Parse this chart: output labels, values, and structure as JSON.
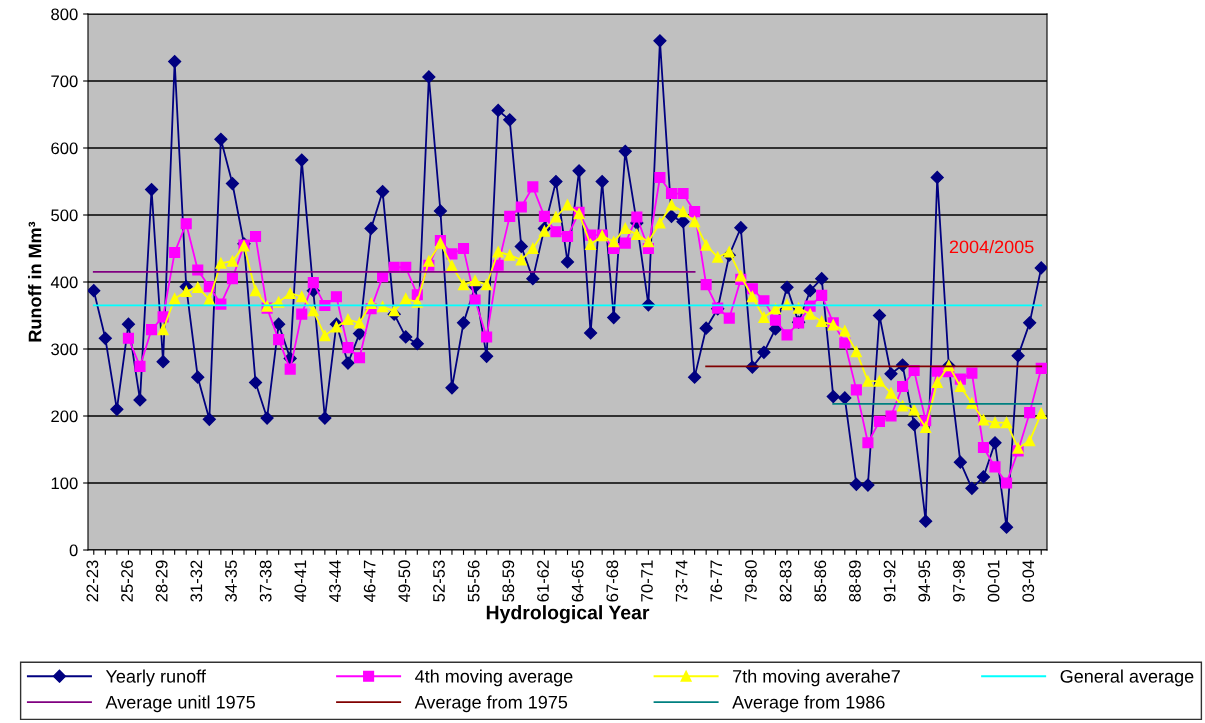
{
  "chart_data": {
    "type": "line",
    "xlabel": "Hydrological Year",
    "ylabel": "Runoff in Mm³",
    "categories": [
      "22-23",
      null,
      null,
      "25-26",
      null,
      null,
      "28-29",
      null,
      null,
      "31-32",
      null,
      null,
      "34-35",
      null,
      null,
      "37-38",
      null,
      null,
      "40-41",
      null,
      null,
      "43-44",
      null,
      null,
      "46-47",
      null,
      null,
      "49-50",
      null,
      null,
      "52-53",
      null,
      null,
      "55-56",
      null,
      null,
      "58-59",
      null,
      null,
      "61-62",
      null,
      null,
      "64-65",
      null,
      null,
      "67-68",
      null,
      null,
      "70-71",
      null,
      null,
      "73-74",
      null,
      null,
      "76-77",
      null,
      null,
      "79-80",
      null,
      null,
      "82-83",
      null,
      null,
      "85-86",
      null,
      null,
      "88-89",
      null,
      null,
      "91-92",
      null,
      null,
      "94-95",
      null,
      null,
      "97-98",
      null,
      null,
      "00-01",
      null,
      null,
      "03-04",
      null
    ],
    "ylim": [
      0,
      800
    ],
    "yticks": [
      0,
      100,
      200,
      300,
      400,
      500,
      600,
      700,
      800
    ],
    "grid": "y",
    "legend": "bottom",
    "annotations": [
      "2004/2005"
    ],
    "series": [
      {
        "name": "Yearly runoff",
        "color": "#000080",
        "marker": "diamond",
        "values": [
          387,
          316,
          210,
          337,
          224,
          538,
          281,
          729,
          393,
          258,
          195,
          613,
          547,
          457,
          250,
          197,
          337,
          286,
          582,
          387,
          197,
          337,
          279,
          323,
          480,
          535,
          352,
          318,
          308,
          706,
          506,
          242,
          339,
          393,
          289,
          656,
          642,
          453,
          405,
          480,
          550,
          430,
          566,
          324,
          550,
          347,
          595,
          488,
          366,
          760,
          498,
          490,
          258,
          331,
          360,
          440,
          481,
          273,
          295,
          330,
          392,
          340,
          387,
          405,
          229,
          227,
          98,
          97,
          350,
          263,
          276,
          187,
          43,
          556,
          275,
          131,
          92,
          109,
          160,
          34,
          290,
          339,
          421
        ]
      },
      {
        "name": "4th moving average",
        "color": "#ff00ff",
        "marker": "square",
        "values": [
          null,
          null,
          null,
          316,
          274,
          329,
          348,
          444,
          487,
          418,
          393,
          367,
          405,
          455,
          468,
          361,
          314,
          270,
          352,
          399,
          365,
          378,
          302,
          287,
          360,
          408,
          422,
          422,
          381,
          425,
          462,
          442,
          450,
          373,
          318,
          425,
          498,
          512,
          542,
          498,
          475,
          468,
          504,
          470,
          470,
          450,
          458,
          497,
          450,
          556,
          532,
          532,
          505,
          396,
          361,
          346,
          404,
          390,
          372,
          343,
          321,
          339,
          364,
          380,
          339,
          309,
          239,
          160,
          192,
          200,
          244,
          268,
          193,
          267,
          266,
          255,
          264,
          153,
          124,
          100,
          148,
          205,
          271
        ]
      },
      {
        "name": "7th moving averahe7",
        "color": "#ffff00",
        "marker": "triangle",
        "values": [
          null,
          null,
          null,
          null,
          null,
          null,
          329,
          375,
          386,
          392,
          374,
          428,
          431,
          454,
          387,
          364,
          370,
          383,
          378,
          357,
          320,
          333,
          344,
          339,
          368,
          363,
          357,
          375,
          370,
          431,
          458,
          424,
          396,
          402,
          396,
          445,
          440,
          433,
          450,
          476,
          497,
          515,
          502,
          456,
          469,
          460,
          480,
          471,
          460,
          488,
          515,
          505,
          490,
          455,
          437,
          445,
          409,
          378,
          347,
          360,
          366,
          361,
          352,
          341,
          336,
          327,
          296,
          252,
          252,
          234,
          215,
          209,
          183,
          250,
          275,
          244,
          219,
          194,
          190,
          190,
          152,
          163,
          204
        ]
      },
      {
        "name": "General average",
        "color": "#00ffff",
        "marker": "none",
        "values": [
          365,
          365,
          365,
          365,
          365,
          365,
          365,
          365,
          365,
          365,
          365,
          365,
          365,
          365,
          365,
          365,
          365,
          365,
          365,
          365,
          365,
          365,
          365,
          365,
          365,
          365,
          365,
          365,
          365,
          365,
          365,
          365,
          365,
          365,
          365,
          365,
          365,
          365,
          365,
          365,
          365,
          365,
          365,
          365,
          365,
          365,
          365,
          365,
          365,
          365,
          365,
          365,
          365,
          365,
          365,
          365,
          365,
          365,
          365,
          365,
          365,
          365,
          365,
          365,
          365,
          365,
          365,
          365,
          365,
          365,
          365,
          365,
          365,
          365,
          365,
          365,
          365,
          365,
          365,
          365,
          365,
          365,
          365
        ]
      },
      {
        "name": "Average unitl 1975",
        "color": "#800080",
        "marker": "none",
        "values": [
          415,
          415,
          415,
          415,
          415,
          415,
          415,
          415,
          415,
          415,
          415,
          415,
          415,
          415,
          415,
          415,
          415,
          415,
          415,
          415,
          415,
          415,
          415,
          415,
          415,
          415,
          415,
          415,
          415,
          415,
          415,
          415,
          415,
          415,
          415,
          415,
          415,
          415,
          415,
          415,
          415,
          415,
          415,
          415,
          415,
          415,
          415,
          415,
          415,
          415,
          415,
          415,
          415,
          null,
          null,
          null,
          null,
          null,
          null,
          null,
          null,
          null,
          null,
          null,
          null,
          null,
          null,
          null,
          null,
          null,
          null,
          null,
          null,
          null,
          null,
          null,
          null,
          null,
          null,
          null,
          null,
          null,
          null
        ]
      },
      {
        "name": "Average from 1975",
        "color": "#800000",
        "marker": "none",
        "values": [
          null,
          null,
          null,
          null,
          null,
          null,
          null,
          null,
          null,
          null,
          null,
          null,
          null,
          null,
          null,
          null,
          null,
          null,
          null,
          null,
          null,
          null,
          null,
          null,
          null,
          null,
          null,
          null,
          null,
          null,
          null,
          null,
          null,
          null,
          null,
          null,
          null,
          null,
          null,
          null,
          null,
          null,
          null,
          null,
          null,
          null,
          null,
          null,
          null,
          null,
          null,
          null,
          null,
          274,
          274,
          274,
          274,
          274,
          274,
          274,
          274,
          274,
          274,
          274,
          274,
          274,
          274,
          274,
          274,
          274,
          274,
          274,
          274,
          274,
          274,
          274,
          274,
          274,
          274,
          274,
          274,
          274,
          274
        ]
      },
      {
        "name": "Average from 1986",
        "color": "#008080",
        "marker": "none",
        "values": [
          null,
          null,
          null,
          null,
          null,
          null,
          null,
          null,
          null,
          null,
          null,
          null,
          null,
          null,
          null,
          null,
          null,
          null,
          null,
          null,
          null,
          null,
          null,
          null,
          null,
          null,
          null,
          null,
          null,
          null,
          null,
          null,
          null,
          null,
          null,
          null,
          null,
          null,
          null,
          null,
          null,
          null,
          null,
          null,
          null,
          null,
          null,
          null,
          null,
          null,
          null,
          null,
          null,
          null,
          null,
          null,
          null,
          null,
          null,
          null,
          null,
          null,
          null,
          null,
          218,
          218,
          218,
          218,
          218,
          218,
          218,
          218,
          218,
          218,
          218,
          218,
          218,
          218,
          218,
          218,
          218,
          218,
          218
        ]
      }
    ]
  }
}
